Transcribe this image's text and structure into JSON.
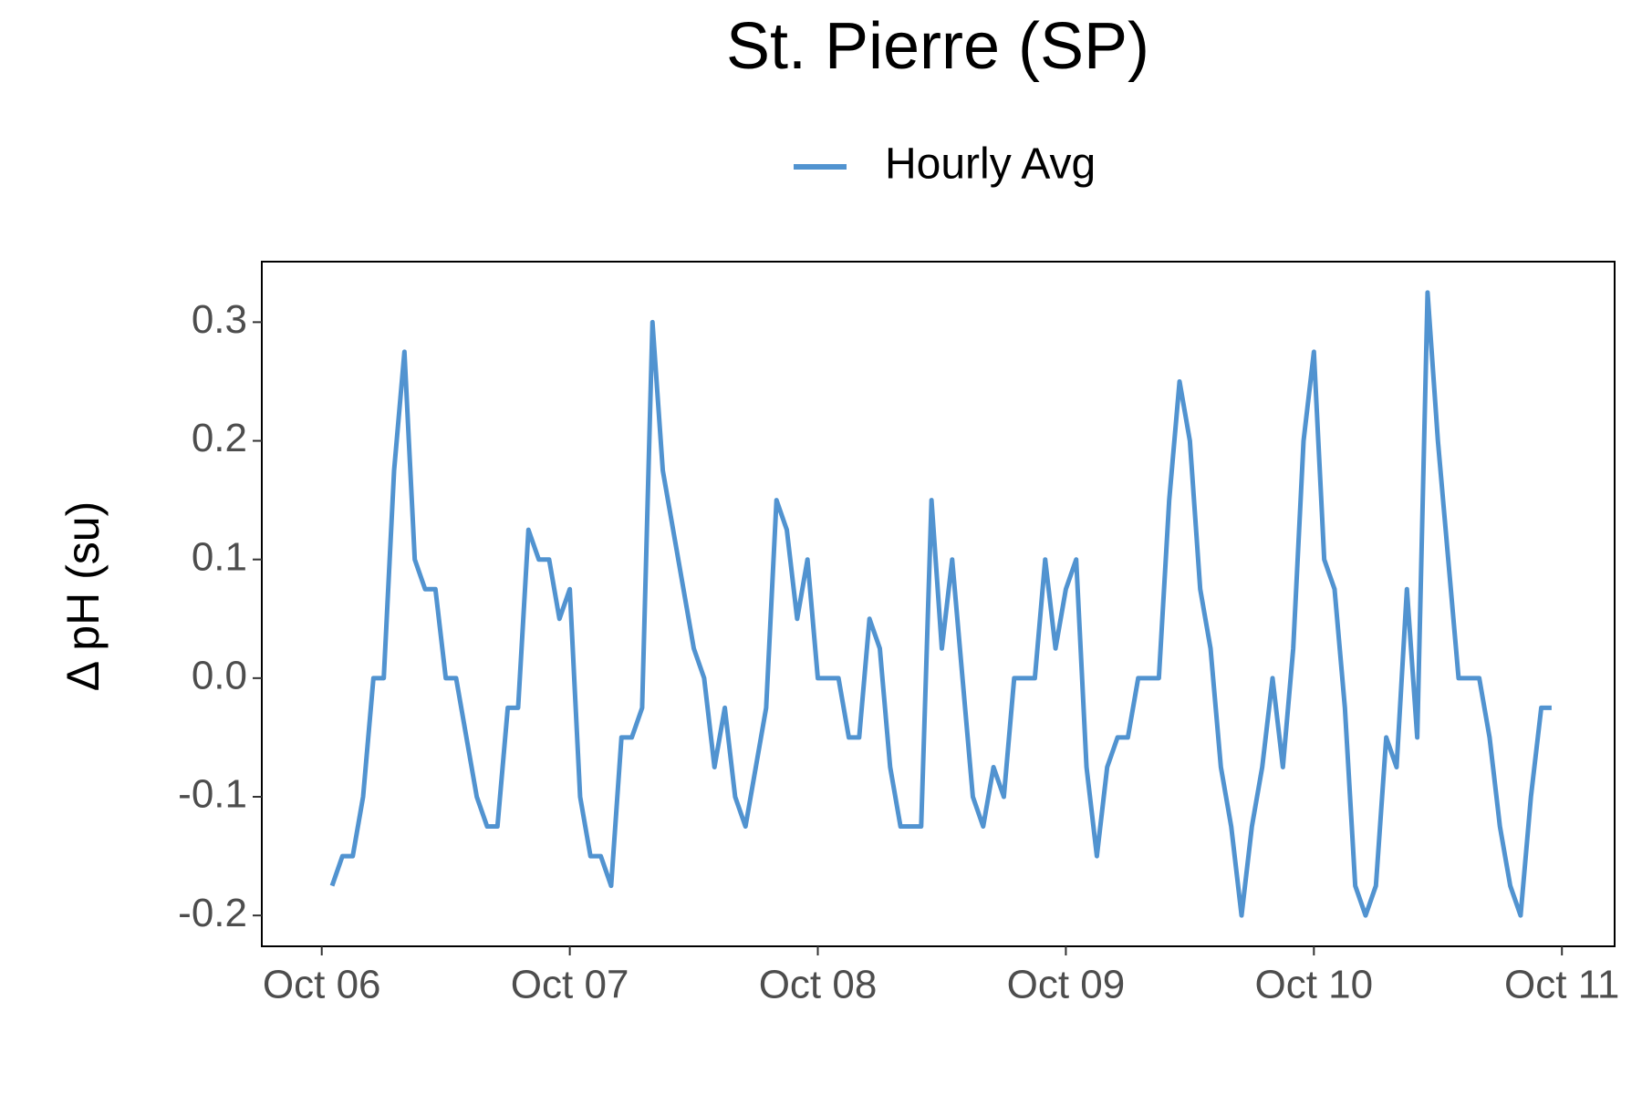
{
  "chart_data": {
    "type": "line",
    "title": "St. Pierre (SP)",
    "ylabel": "Δ pH (su)",
    "x": [
      1,
      2,
      3,
      4,
      5,
      6,
      7,
      8,
      9,
      10,
      11,
      12,
      13,
      14,
      15,
      16,
      17,
      18,
      19,
      20,
      21,
      22,
      23,
      24,
      25,
      26,
      27,
      28,
      29,
      30,
      31,
      32,
      33,
      34,
      35,
      36,
      37,
      38,
      39,
      40,
      41,
      42,
      43,
      44,
      45,
      46,
      47,
      48,
      49,
      50,
      51,
      52,
      53,
      54,
      55,
      56,
      57,
      58,
      59,
      60,
      61,
      62,
      63,
      64,
      65,
      66,
      67,
      68,
      69,
      70,
      71,
      72,
      73,
      74,
      75,
      76,
      77,
      78,
      79,
      80,
      81,
      82,
      83,
      84,
      85,
      86,
      87,
      88,
      89,
      90,
      91,
      92,
      93,
      94,
      95,
      96,
      97,
      98,
      99,
      100,
      101,
      102,
      103,
      104,
      105,
      106,
      107,
      108,
      109,
      110,
      111,
      112,
      113,
      114,
      115,
      116,
      117,
      118,
      119
    ],
    "series": [
      {
        "name": "Hourly Avg",
        "color": "#5193d0",
        "values": [
          -0.175,
          -0.15,
          -0.15,
          -0.1,
          0,
          0,
          0.175,
          0.275,
          0.1,
          0.075,
          0.075,
          0,
          0,
          -0.05,
          -0.1,
          -0.125,
          -0.125,
          -0.025,
          -0.025,
          0.125,
          0.1,
          0.1,
          0.05,
          0.075,
          -0.1,
          -0.15,
          -0.15,
          -0.175,
          -0.05,
          -0.05,
          -0.025,
          0.3,
          0.175,
          0.125,
          0.075,
          0.025,
          0,
          -0.075,
          -0.025,
          -0.1,
          -0.125,
          -0.075,
          -0.025,
          0.15,
          0.125,
          0.05,
          0.1,
          0,
          0,
          0,
          -0.05,
          -0.05,
          0.05,
          0.025,
          -0.075,
          -0.125,
          -0.125,
          -0.125,
          0.15,
          0.025,
          0.1,
          0,
          -0.1,
          -0.125,
          -0.075,
          -0.1,
          0,
          0,
          0,
          0.1,
          0.025,
          0.075,
          0.1,
          -0.075,
          -0.15,
          -0.075,
          -0.05,
          -0.05,
          0,
          0,
          0,
          0.15,
          0.25,
          0.2,
          0.075,
          0.025,
          -0.075,
          -0.125,
          -0.2,
          -0.125,
          -0.075,
          0,
          -0.075,
          0.025,
          0.2,
          0.275,
          0.1,
          0.075,
          -0.025,
          -0.175,
          -0.2,
          -0.175,
          -0.05,
          -0.075,
          0.075,
          -0.05,
          0.325,
          0.2,
          0.1,
          0,
          0,
          0,
          -0.05,
          -0.125,
          -0.175,
          -0.2,
          -0.1,
          -0.025,
          -0.025
        ]
      }
    ],
    "xlim": [
      -5.8,
      125.1
    ],
    "xticks": [
      {
        "value": 0,
        "label": "Oct 06"
      },
      {
        "value": 24,
        "label": "Oct 07"
      },
      {
        "value": 48,
        "label": "Oct 08"
      },
      {
        "value": 72,
        "label": "Oct 09"
      },
      {
        "value": 96,
        "label": "Oct 10"
      },
      {
        "value": 120,
        "label": "Oct 11"
      }
    ],
    "ylim": [
      -0.226,
      0.351
    ],
    "yticks": [
      -0.2,
      -0.1,
      {
        "value": 0,
        "label": "0.0"
      },
      0.1,
      0.2,
      0.3
    ],
    "grid": false,
    "legend": "top"
  }
}
